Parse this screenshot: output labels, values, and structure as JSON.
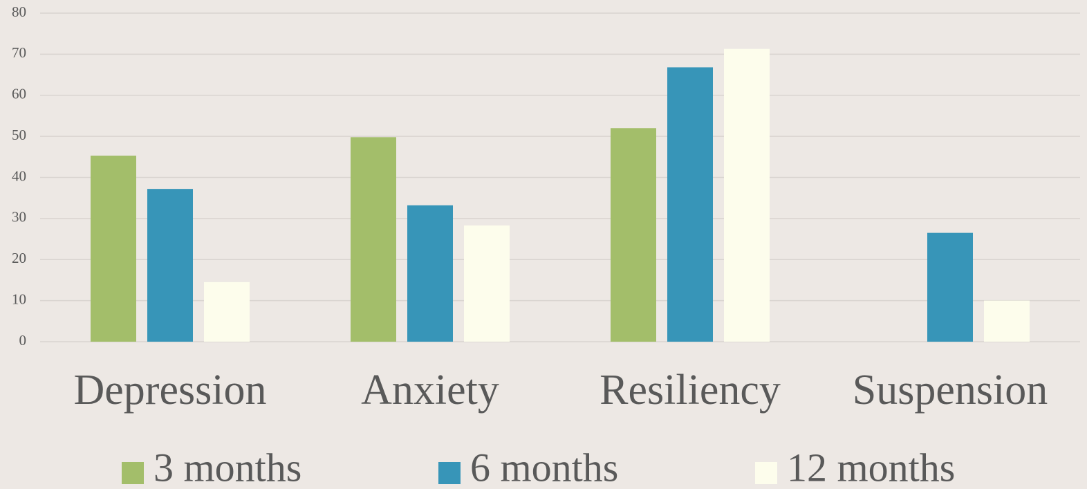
{
  "chart_data": {
    "type": "bar",
    "categories": [
      "Depression",
      "Anxiety",
      "Resiliency",
      "Suspension"
    ],
    "series": [
      {
        "name": "3 months",
        "color": "#a3be6a",
        "values": [
          45.3,
          49.8,
          52,
          null
        ]
      },
      {
        "name": "6 months",
        "color": "#3795b8",
        "values": [
          37.2,
          33.2,
          66.8,
          26.5
        ]
      },
      {
        "name": "12 months",
        "color": "#fdfdec",
        "values": [
          14.5,
          28.3,
          71.3,
          10
        ]
      }
    ],
    "ylim": [
      0,
      80
    ],
    "yticks": [
      0,
      10,
      20,
      30,
      40,
      50,
      60,
      70,
      80
    ],
    "grid": true,
    "legend": "bottom"
  }
}
